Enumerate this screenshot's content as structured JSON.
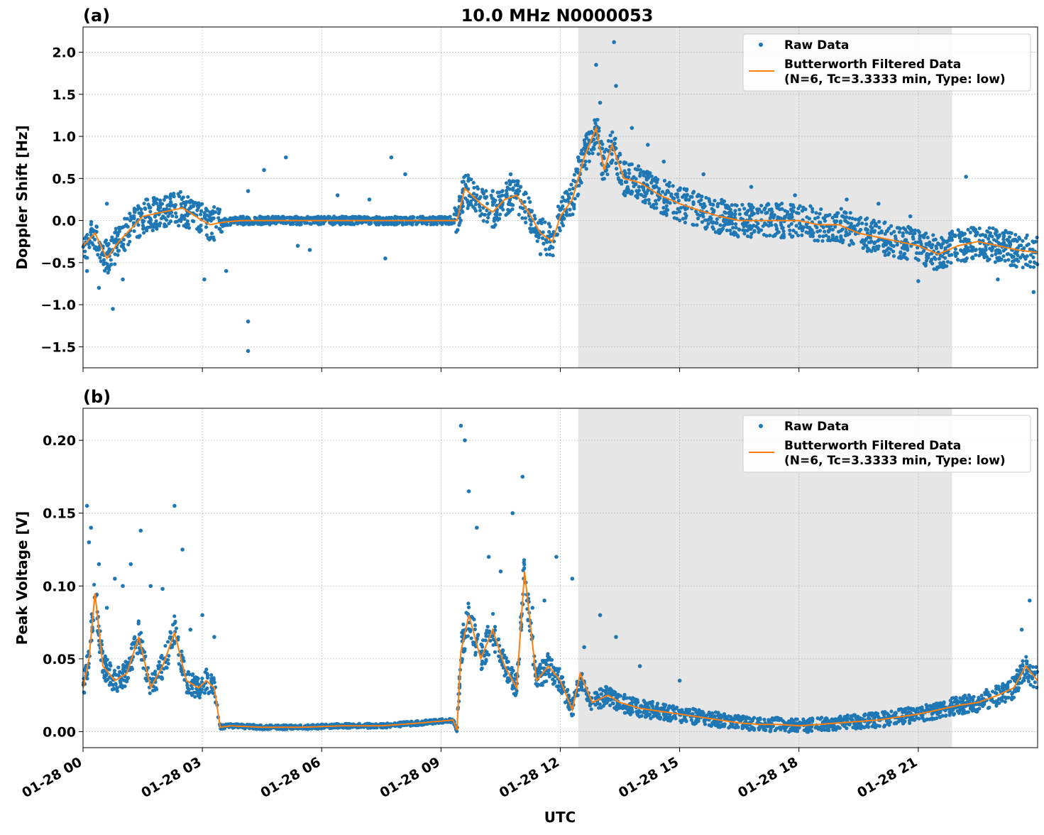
{
  "figure": {
    "main_title": "10.0 MHz N0000053",
    "xlabel": "UTC",
    "x_ticks": [
      "01-28 00",
      "01-28 03",
      "01-28 06",
      "01-28 09",
      "01-28 12",
      "01-28 15",
      "01-28 18",
      "01-28 21"
    ],
    "shade_color": "#e6e6e6",
    "raw_color": "#1f77b4",
    "filtered_color": "#ff7f0e"
  },
  "legend": {
    "raw": "Raw Data",
    "filtered_line1": "Butterworth Filtered Data",
    "filtered_line2": "(N=6, Tc=3.3333 min, Type: low)"
  },
  "chart_data": [
    {
      "id": "a",
      "panel_label": "(a)",
      "type": "scatter",
      "ylabel": "Doppler Shift [Hz]",
      "x_unit": "hours UTC on 01-28",
      "xlim": [
        0,
        24
      ],
      "ylim": [
        -1.75,
        2.3
      ],
      "y_ticks": [
        2.0,
        1.5,
        1.0,
        0.5,
        0.0,
        -0.5,
        -1.0,
        -1.5
      ],
      "y_tick_labels": [
        "2.0",
        "1.5",
        "1.0",
        "0.5",
        "0.0",
        "−0.5",
        "−1.0",
        "−1.5"
      ],
      "shaded_span": [
        12.45,
        21.85
      ],
      "grid": true,
      "legend_position": "upper right",
      "series": [
        {
          "name": "Butterworth Filtered Data",
          "kind": "line",
          "x": [
            0,
            0.3,
            0.6,
            0.9,
            1.2,
            1.5,
            2.0,
            2.5,
            3.0,
            3.2,
            3.5,
            4.0,
            4.2,
            4.5,
            5.0,
            5.5,
            6.0,
            7.0,
            8.0,
            9.0,
            9.4,
            9.6,
            10.0,
            10.3,
            10.6,
            10.9,
            11.2,
            11.5,
            11.8,
            12.0,
            12.3,
            12.6,
            12.9,
            13.1,
            13.3,
            13.6,
            14.0,
            14.5,
            15.0,
            15.5,
            16.0,
            16.5,
            17.0,
            17.5,
            18.0,
            18.5,
            19.0,
            19.5,
            20.0,
            20.5,
            21.0,
            21.5,
            22.0,
            22.5,
            23.0,
            23.5,
            24.0
          ],
          "y": [
            -0.3,
            -0.15,
            -0.45,
            -0.25,
            -0.1,
            0.05,
            0.1,
            0.15,
            0.0,
            -0.05,
            -0.02,
            0.0,
            0.0,
            0.0,
            0.0,
            0.0,
            0.0,
            0.0,
            0.0,
            0.0,
            0.0,
            0.38,
            0.2,
            0.1,
            0.25,
            0.3,
            0.1,
            -0.15,
            -0.25,
            0.05,
            0.25,
            0.75,
            1.1,
            0.6,
            0.9,
            0.5,
            0.45,
            0.3,
            0.2,
            0.12,
            0.05,
            0.0,
            0.0,
            0.0,
            0.0,
            -0.05,
            -0.05,
            -0.15,
            -0.2,
            -0.25,
            -0.3,
            -0.4,
            -0.3,
            -0.25,
            -0.3,
            -0.35,
            -0.38
          ]
        },
        {
          "name": "Raw Data",
          "kind": "points",
          "x": [
            0.1,
            0.4,
            0.6,
            0.75,
            1.0,
            1.3,
            1.6,
            2.1,
            2.6,
            3.05,
            3.6,
            4.15,
            4.15,
            4.15,
            4.55,
            5.1,
            5.4,
            5.7,
            6.4,
            7.2,
            7.6,
            7.75,
            8.1,
            9.7,
            10.3,
            10.75,
            11.0,
            11.5,
            12.45,
            12.9,
            13.0,
            13.35,
            13.4,
            13.8,
            14.2,
            14.6,
            15.6,
            16.8,
            17.9,
            19.2,
            20.0,
            20.8,
            21.0,
            22.2,
            23.0,
            23.9
          ],
          "y": [
            -0.6,
            -0.8,
            0.2,
            -1.05,
            -0.7,
            0.1,
            0.25,
            0.28,
            0.22,
            -0.7,
            -0.6,
            -1.55,
            -1.2,
            0.35,
            0.6,
            0.75,
            -0.3,
            -0.35,
            0.3,
            0.25,
            -0.45,
            0.75,
            0.55,
            0.5,
            0.35,
            0.55,
            0.4,
            -0.4,
            0.75,
            1.85,
            1.4,
            2.12,
            1.6,
            1.1,
            0.9,
            0.7,
            0.55,
            0.4,
            0.3,
            0.25,
            0.2,
            0.05,
            -0.72,
            0.52,
            -0.7,
            -0.85
          ]
        }
      ]
    },
    {
      "id": "b",
      "panel_label": "(b)",
      "type": "scatter",
      "ylabel": "Peak Voltage [V]",
      "x_unit": "hours UTC on 01-28",
      "xlim": [
        0,
        24
      ],
      "ylim": [
        -0.011,
        0.222
      ],
      "y_ticks": [
        0.2,
        0.15,
        0.1,
        0.05,
        0.0
      ],
      "y_tick_labels": [
        "0.20",
        "0.15",
        "0.10",
        "0.05",
        "0.00"
      ],
      "shaded_span": [
        12.45,
        21.85
      ],
      "grid": true,
      "legend_position": "upper right",
      "series": [
        {
          "name": "Butterworth Filtered Data",
          "kind": "line",
          "x": [
            0,
            0.15,
            0.3,
            0.5,
            0.8,
            1.1,
            1.4,
            1.7,
            2.0,
            2.3,
            2.6,
            2.9,
            3.1,
            3.3,
            3.45,
            3.7,
            4.5,
            5.5,
            6.5,
            7.5,
            8.5,
            9.3,
            9.4,
            9.5,
            9.7,
            10.0,
            10.3,
            10.6,
            10.9,
            11.1,
            11.4,
            11.7,
            12.0,
            12.3,
            12.5,
            12.8,
            13.2,
            13.5,
            14.0,
            14.5,
            15.0,
            15.5,
            16.0,
            16.5,
            17.0,
            17.5,
            18.0,
            18.5,
            19.0,
            19.5,
            20.0,
            20.5,
            21.0,
            21.5,
            22.0,
            22.5,
            23.0,
            23.4,
            23.7,
            24.0
          ],
          "y": [
            0.03,
            0.05,
            0.095,
            0.045,
            0.035,
            0.04,
            0.065,
            0.03,
            0.045,
            0.068,
            0.035,
            0.03,
            0.035,
            0.03,
            0.003,
            0.004,
            0.003,
            0.003,
            0.004,
            0.004,
            0.006,
            0.008,
            0.001,
            0.055,
            0.08,
            0.05,
            0.07,
            0.045,
            0.03,
            0.11,
            0.035,
            0.045,
            0.035,
            0.015,
            0.04,
            0.02,
            0.025,
            0.02,
            0.016,
            0.014,
            0.012,
            0.01,
            0.008,
            0.006,
            0.005,
            0.005,
            0.004,
            0.005,
            0.006,
            0.007,
            0.008,
            0.01,
            0.012,
            0.015,
            0.018,
            0.02,
            0.025,
            0.03,
            0.045,
            0.035
          ]
        },
        {
          "name": "Raw Data",
          "kind": "points",
          "x": [
            0.1,
            0.15,
            0.2,
            0.4,
            0.6,
            0.8,
            1.0,
            1.2,
            1.45,
            1.7,
            2.0,
            2.3,
            2.5,
            2.7,
            3.0,
            3.3,
            9.5,
            9.6,
            9.7,
            9.9,
            10.2,
            10.5,
            10.8,
            11.05,
            11.3,
            11.6,
            11.9,
            12.3,
            12.6,
            13.0,
            13.4,
            14.0,
            15.0,
            23.6,
            23.8
          ],
          "y": [
            0.155,
            0.13,
            0.14,
            0.115,
            0.085,
            0.105,
            0.1,
            0.115,
            0.138,
            0.1,
            0.098,
            0.155,
            0.125,
            0.07,
            0.08,
            0.065,
            0.21,
            0.2,
            0.165,
            0.14,
            0.12,
            0.11,
            0.15,
            0.175,
            0.085,
            0.09,
            0.12,
            0.105,
            0.058,
            0.08,
            0.065,
            0.045,
            0.035,
            0.07,
            0.09
          ]
        }
      ]
    }
  ]
}
